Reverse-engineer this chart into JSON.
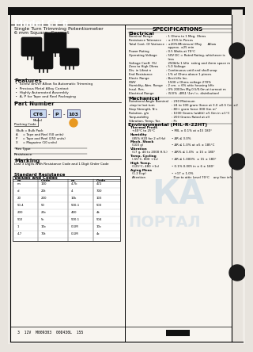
{
  "title": "Model CT-6",
  "subtitle": "Single Turn Trimming Potentiometer",
  "subtitle2": "6 mm Square, Cermet",
  "bg_color": "#f0ede8",
  "inner_bg": "#f5f2ed",
  "border_color": "#000000",
  "specs_title": "SPECIFICATIONS",
  "features_title": "Features",
  "features": [
    " •  Screw driver Allow So Automatic Trimming",
    " •  Precious Metal Alloy Contact",
    " •  Highly Automated Assembly",
    " •  A, P for Tape and Reel Packaging"
  ],
  "part_number_title": "Part Number",
  "part_number_label": "CT6",
  "part_p_label": "P",
  "part_103_label": "103",
  "part_model_line": "Model",
  "part_packing_code": "Packing Code",
  "part_packing_lines": [
    "(Bulk = Bulk Pack",
    "A     = Tape and Reel (50 units)",
    "P     = Tape and Reel (250 units)",
    "X     = Magazine (10 units)"
  ],
  "part_trim_type": "Trim Type",
  "part_resistance": "Resistance",
  "marking_title": "Marking",
  "marking_text": "Last 3 Digits With Resistance Code and 1 Digit Order Code",
  "table_title": "Standard Resistance",
  "table_subtitle": "Values and Codes",
  "table_headers": [
    "m",
    "Code",
    "m",
    "Code"
  ],
  "table_rows": [
    [
      "m",
      "100",
      "4.7k",
      "472"
    ],
    [
      "d",
      "20t",
      "4",
      "700"
    ],
    [
      "20",
      "200",
      "10k",
      "103"
    ],
    [
      "50.4",
      "50",
      "500-1",
      "503"
    ],
    [
      "200",
      "20c",
      "400",
      "4k"
    ],
    [
      "502",
      "5c",
      "500.1",
      "504"
    ],
    [
      "1",
      "10c",
      "0.1M",
      "10c"
    ],
    [
      "4.7",
      "70t",
      "0.1M",
      "4c"
    ]
  ],
  "elec_title": "Electrical",
  "elec_items": [
    [
      "Nominal Range",
      ": 1 Ohms to 1 Meg. Ohms"
    ],
    [
      "Resistance Tolerance",
      ": ± 25% In Pieces"
    ],
    [
      "Total Cont. Of Variance",
      ": ±20%(Minimum) May      Allow"
    ],
    [
      "",
      "  approx. ±25 min"
    ],
    [
      "Power Rating",
      ": 0.5 Watts at 70°C"
    ],
    [
      "Operating Voltage",
      ": 50V DC = Rated Rating, whichever is"
    ],
    [
      "",
      "  less"
    ],
    [
      "Voltage Coeff. (%)",
      "  250kHz 1 kHz  rating and 4mm space m"
    ],
    [
      "Zero to High Ohms",
      ": 5.0 Voltage"
    ],
    [
      "Div. in Lifeat n",
      ": Continuous until end shall snap"
    ],
    [
      "End Resistance",
      ": 1% of Ohms above 1 pieces"
    ],
    [
      "Electr. Range",
      ": Best kHz Inc."
    ],
    [
      "DWV",
      "  1500 v Ohms voltage 270%"
    ],
    [
      "Humidity, Atm. Range",
      ": 2 cm. = 6% attic housing kHz"
    ],
    [
      "Insul. Res.",
      ": 0% 2000m Mg 0.5/0.0m at turnout m"
    ],
    [
      "Electrical Range",
      ": (53)% -4N\\1 \\1m (=- distribution)"
    ]
  ],
  "mech_title": "Mechanical",
  "mech_items": [
    [
      "Rotational Angle Nominal",
      ": 230 Minimum"
    ],
    [
      "-stop to last turn",
      ": 24 to 100 gram (force at 3.0 ±0.5 Cm ±2"
    ],
    [
      "Stop Strength, N·s",
      ": 80+ gram force 300 Gm m²"
    ],
    [
      "Rotation, g/n",
      ": 1000 Grams (width) ±5 Gm in ±1°C"
    ],
    [
      "Torqueability",
      ": 200 Grams Rated at all"
    ],
    [
      "Vibration, Temp, Tor.",
      ": Pc"
    ]
  ],
  "env_title": "Environmental (MIL-R-22HT)",
  "env_items": [
    [
      "Thermal Predf.",
      ""
    ],
    [
      "+40°C to 25°C",
      "• MIL ± 0.1% at ±15 180°"
    ],
    [
      "Humidity",
      ""
    ],
    [
      "(85% H20 for 2 of Hz)",
      "• ΔR ≤ 3.0%"
    ],
    [
      "Mech. Shock",
      ""
    ],
    [
      "(100 g)",
      "• ΔR ≤ 1.0% at ±5 ± 185°C"
    ],
    [
      "Vibration",
      ""
    ],
    [
      "(17 g, 40 to 2000 H.S.)",
      "• ΔR% ≤ 1.0%  ± 15 ± 180°"
    ],
    [
      "Temp. Cycling",
      ""
    ],
    [
      "(-55°C, 800 +1s)",
      "• ΔR ≤ 1.000%  ± 15 ± 180°"
    ],
    [
      "High Temp.",
      ""
    ],
    [
      "(125°C, 480 +1s)",
      "• 0.1% 0.005 in ± 6 ± 180°"
    ],
    [
      "Aging Meas",
      ""
    ],
    [
      "(1.2 Exp)",
      "• +17 ± 1.0%"
    ],
    [
      "Attention",
      "  Due to attic Level 70°C    any fine info"
    ]
  ],
  "barcode_text": "3  12V  M009303  00D430L  155",
  "hole_color": "#1a1a1a",
  "watermark_color": "#b8cfe0"
}
